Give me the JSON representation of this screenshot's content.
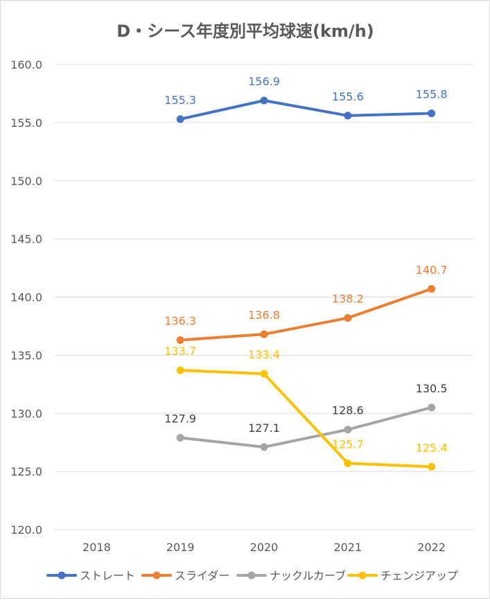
{
  "chart_data": {
    "type": "line",
    "title": "D・シース年度別平均球速(km/h)",
    "xlabel": "",
    "ylabel": "",
    "categories": [
      "2018",
      "2019",
      "2020",
      "2021",
      "2022"
    ],
    "ylim": [
      120.0,
      160.0
    ],
    "y_ticks": [
      "120.0",
      "125.0",
      "130.0",
      "135.0",
      "140.0",
      "145.0",
      "150.0",
      "155.0",
      "160.0"
    ],
    "grid": true,
    "legend_position": "bottom",
    "series": [
      {
        "name": "ストレート",
        "color": "#4472C4",
        "values": [
          null,
          155.3,
          156.9,
          155.6,
          155.8
        ],
        "labels": [
          "",
          "155.3",
          "156.9",
          "155.6",
          "155.8"
        ]
      },
      {
        "name": "スライダー",
        "color": "#ED7D31",
        "values": [
          null,
          136.3,
          136.8,
          138.2,
          140.7
        ],
        "labels": [
          "",
          "136.3",
          "136.8",
          "138.2",
          "140.7"
        ]
      },
      {
        "name": "ナックルカーブ",
        "color": "#A5A5A5",
        "label_color": "#404040",
        "values": [
          null,
          127.9,
          127.1,
          128.6,
          130.5
        ],
        "labels": [
          "",
          "127.9",
          "127.1",
          "128.6",
          "130.5"
        ]
      },
      {
        "name": "チェンジアップ",
        "color": "#FFC000",
        "values": [
          null,
          133.7,
          133.4,
          125.7,
          125.4
        ],
        "labels": [
          "",
          "133.7",
          "133.4",
          "125.7",
          "125.4"
        ]
      }
    ]
  }
}
